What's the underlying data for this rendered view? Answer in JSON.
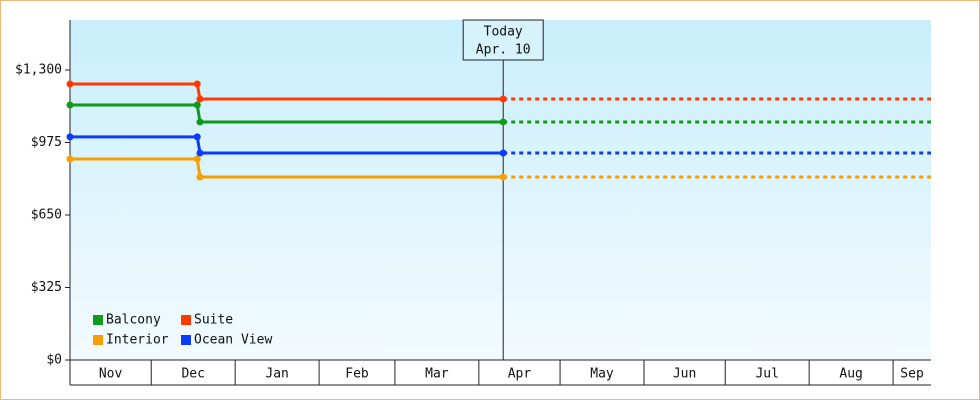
{
  "chart_data": {
    "type": "step-line",
    "x": [
      0,
      47,
      48,
      160
    ],
    "xlim": [
      0,
      318
    ],
    "xticks": [
      0,
      30,
      61,
      92,
      120,
      151,
      181,
      212,
      242,
      273,
      304
    ],
    "x_labels": [
      "Nov",
      "Dec",
      "Jan",
      "Feb",
      "Mar",
      "Apr",
      "May",
      "Jun",
      "Jul",
      "Aug",
      "Sep"
    ],
    "ylim": [
      0,
      1524
    ],
    "yticks": [
      {
        "value": 0,
        "label": "$0"
      },
      {
        "value": 325,
        "label": "$325"
      },
      {
        "value": 650,
        "label": "$650"
      },
      {
        "value": 975,
        "label": "$975"
      },
      {
        "value": 1300,
        "label": "$1,300"
      }
    ],
    "today": {
      "x": 160,
      "title": "Today",
      "label": "Apr. 10"
    },
    "series": [
      {
        "name": "Balcony",
        "color": "#11991a",
        "values": [
          1143,
          1143,
          1067,
          1067
        ]
      },
      {
        "name": "Suite",
        "color": "#ff3a00",
        "values": [
          1237,
          1237,
          1170,
          1170
        ]
      },
      {
        "name": "Interior",
        "color": "#f5a000",
        "values": [
          901,
          901,
          820,
          820
        ]
      },
      {
        "name": "Ocean View",
        "color": "#0a3cff",
        "values": [
          1000,
          1000,
          928,
          928
        ]
      }
    ]
  }
}
